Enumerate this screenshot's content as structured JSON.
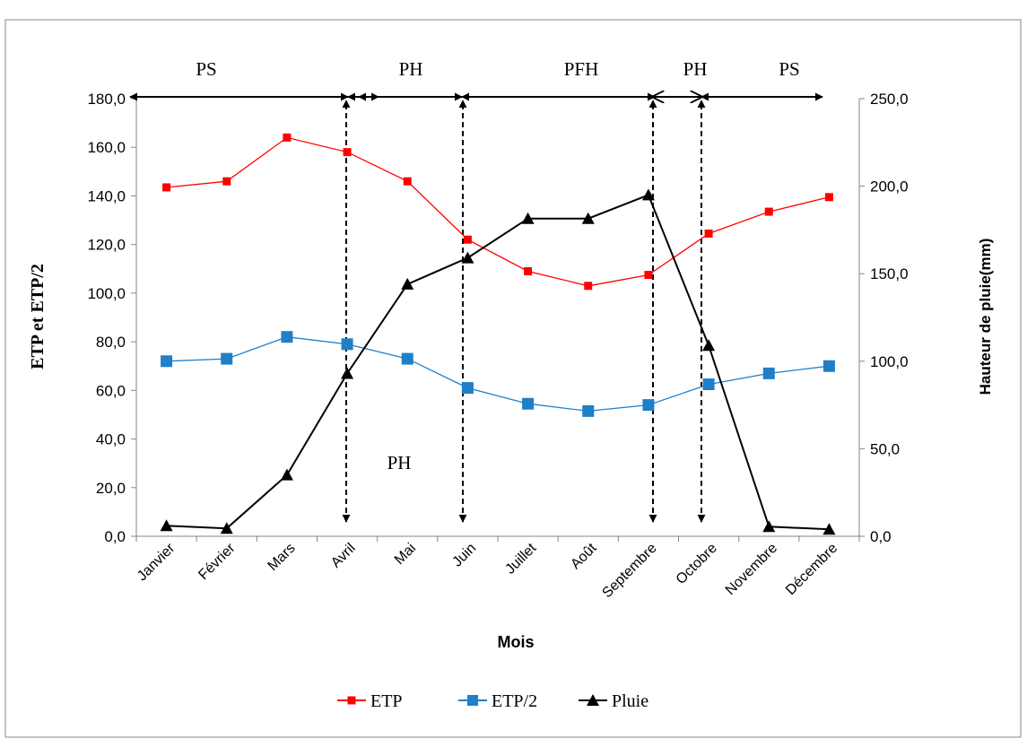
{
  "chart_data": {
    "type": "line",
    "categories": [
      "Janvier",
      "Février",
      "Mars",
      "Avril",
      "Mai",
      "Juin",
      "Juillet",
      "Août",
      "Septembre",
      "Octobre",
      "Novembre",
      "Décembre"
    ],
    "xlabel": "Mois",
    "ylabel": "ETP et ETP/2",
    "y2label": "Hauteur de pluie(mm)",
    "ylim": [
      0,
      180
    ],
    "y2lim": [
      0,
      250
    ],
    "yticks": [
      "0,0",
      "20,0",
      "40,0",
      "60,0",
      "80,0",
      "100,0",
      "120,0",
      "140,0",
      "160,0",
      "180,0"
    ],
    "y2ticks": [
      "0,0",
      "50,0",
      "100,0",
      "150,0",
      "200,0",
      "250,0"
    ],
    "grid": false,
    "legend_position": "bottom",
    "series": [
      {
        "name": "ETP",
        "axis": "left",
        "color": "#ff0000",
        "marker": "square",
        "values": [
          143.5,
          146.0,
          164.0,
          158.0,
          146.0,
          122.0,
          109.0,
          103.0,
          107.5,
          124.5,
          133.5,
          139.5
        ]
      },
      {
        "name": "ETP/2",
        "axis": "left",
        "color": "#1f7fc8",
        "marker": "square",
        "values": [
          72.0,
          73.0,
          82.0,
          79.0,
          73.0,
          61.0,
          54.5,
          51.5,
          54.0,
          62.5,
          67.0,
          70.0
        ]
      },
      {
        "name": "Pluie",
        "axis": "right",
        "color": "#000000",
        "marker": "triangle",
        "values": [
          6.0,
          4.5,
          35.0,
          93.0,
          144.0,
          159.0,
          181.5,
          181.5,
          195.0,
          109.0,
          5.5,
          4.0
        ]
      }
    ],
    "period_labels": [
      {
        "text": "PS",
        "position": "top"
      },
      {
        "text": "PH",
        "position": "top"
      },
      {
        "text": "PFH",
        "position": "top"
      },
      {
        "text": "PH",
        "position": "top"
      },
      {
        "text": "PS",
        "position": "top"
      },
      {
        "text": "PH",
        "position": "inside"
      }
    ]
  }
}
